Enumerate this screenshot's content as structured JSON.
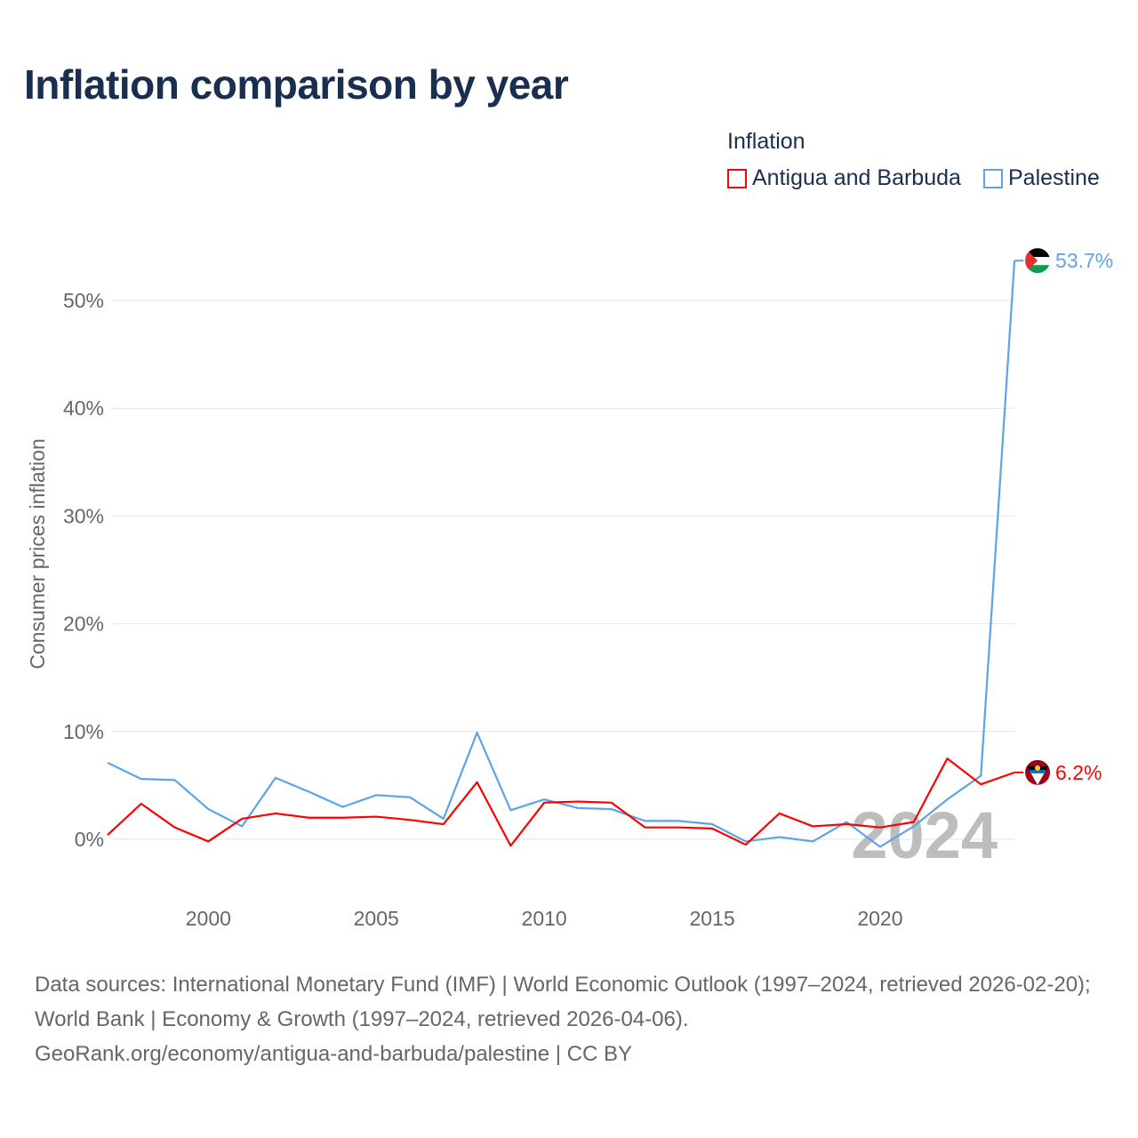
{
  "title": "Inflation comparison by year",
  "legend": {
    "title": "Inflation",
    "items": [
      {
        "label": "Antigua and Barbuda",
        "color": "#ff0000"
      },
      {
        "label": "Palestine",
        "color": "#5ba4e8"
      }
    ]
  },
  "chart_data": {
    "type": "line",
    "title": "Inflation comparison by year",
    "xlabel": "",
    "ylabel": "Consumer prices inflation",
    "x": [
      1997,
      1998,
      1999,
      2000,
      2001,
      2002,
      2003,
      2004,
      2005,
      2006,
      2007,
      2008,
      2009,
      2010,
      2011,
      2012,
      2013,
      2014,
      2015,
      2016,
      2017,
      2018,
      2019,
      2020,
      2021,
      2022,
      2023,
      2024
    ],
    "xticks": [
      2000,
      2005,
      2010,
      2015,
      2020
    ],
    "xtick_labels": [
      "2000",
      "2005",
      "2010",
      "2015",
      "2020"
    ],
    "yticks": [
      0,
      10,
      20,
      30,
      40,
      50
    ],
    "ytick_labels": [
      "0%",
      "10%",
      "20%",
      "30%",
      "40%",
      "50%"
    ],
    "ylim": [
      -5,
      56
    ],
    "xlim": [
      1997,
      2024
    ],
    "grid": true,
    "legend_position": "top-right",
    "watermark_year": "2024",
    "series": [
      {
        "name": "Antigua and Barbuda",
        "color": "#ff0000",
        "end_label": "6.2%",
        "values": [
          0.4,
          3.3,
          1.1,
          -0.2,
          1.9,
          2.4,
          2.0,
          2.0,
          2.1,
          1.8,
          1.4,
          5.3,
          -0.6,
          3.4,
          3.5,
          3.4,
          1.1,
          1.1,
          1.0,
          -0.5,
          2.4,
          1.2,
          1.4,
          1.1,
          1.6,
          7.5,
          5.1,
          6.2
        ]
      },
      {
        "name": "Palestine",
        "color": "#5ba4e8",
        "end_label": "53.7%",
        "values": [
          7.1,
          5.6,
          5.5,
          2.8,
          1.2,
          5.7,
          4.4,
          3.0,
          4.1,
          3.9,
          1.9,
          9.9,
          2.7,
          3.7,
          2.9,
          2.8,
          1.7,
          1.7,
          1.4,
          -0.2,
          0.2,
          -0.2,
          1.6,
          -0.7,
          1.2,
          3.7,
          5.9,
          53.7
        ]
      }
    ]
  },
  "footer": {
    "sources": "Data sources: International Monetary Fund (IMF) | World Economic Outlook (1997–2024, retrieved 2026-02-20); World Bank | Economy & Growth (1997–2024, retrieved 2026-04-06).",
    "link": "GeoRank.org/economy/antigua-and-barbuda/palestine | CC BY"
  }
}
